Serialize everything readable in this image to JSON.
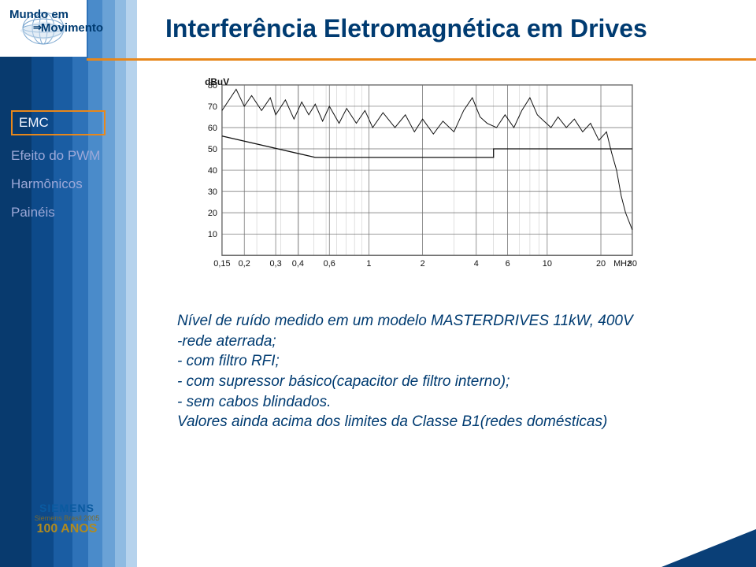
{
  "brand": {
    "line1": "Mundo em",
    "line2": "Movimento"
  },
  "title": "Interferência Eletromagnética em Drives",
  "sidebar": {
    "items": [
      {
        "label": "EMC",
        "active": true
      },
      {
        "label": "Efeito do PWM",
        "active": false
      },
      {
        "label": "Harmônicos",
        "active": false
      },
      {
        "label": "Painéis",
        "active": false
      }
    ]
  },
  "chart": {
    "type": "line",
    "y_axis_label": "dBuV",
    "x_axis_label": "MHz",
    "xlim": [
      0.15,
      30
    ],
    "xscale": "log",
    "ylim": [
      0,
      80
    ],
    "y_ticks": [
      0,
      10,
      20,
      30,
      40,
      50,
      60,
      70,
      80
    ],
    "y_tick_labels": [
      "",
      "10",
      "20",
      "30",
      "40",
      "50",
      "60",
      "70",
      "80"
    ],
    "x_ticks": [
      0.15,
      0.2,
      0.3,
      0.4,
      0.6,
      1,
      2,
      4,
      6,
      10,
      20,
      30
    ],
    "x_tick_labels": [
      "0,15",
      "0,2",
      "0,3",
      "0,4",
      "0,6",
      "1",
      "2",
      "4",
      "6",
      "10",
      "20",
      "30"
    ],
    "background_color": "#ffffff",
    "grid_color": "#6b6b6b",
    "trace_color": "#111111",
    "limit_line_color": "#111111",
    "axis_fontsize": 11,
    "line_width": 1.0,
    "limit_line": [
      {
        "x": 0.15,
        "y": 56
      },
      {
        "x": 0.5,
        "y": 46
      },
      {
        "x": 0.5,
        "y": 46
      },
      {
        "x": 5,
        "y": 46
      },
      {
        "x": 5,
        "y": 50
      },
      {
        "x": 30,
        "y": 50
      }
    ],
    "trace": [
      {
        "x": 0.15,
        "y": 68
      },
      {
        "x": 0.18,
        "y": 78
      },
      {
        "x": 0.2,
        "y": 70
      },
      {
        "x": 0.22,
        "y": 75
      },
      {
        "x": 0.25,
        "y": 68
      },
      {
        "x": 0.28,
        "y": 74
      },
      {
        "x": 0.3,
        "y": 66
      },
      {
        "x": 0.34,
        "y": 73
      },
      {
        "x": 0.38,
        "y": 64
      },
      {
        "x": 0.42,
        "y": 72
      },
      {
        "x": 0.46,
        "y": 66
      },
      {
        "x": 0.5,
        "y": 71
      },
      {
        "x": 0.55,
        "y": 63
      },
      {
        "x": 0.6,
        "y": 70
      },
      {
        "x": 0.68,
        "y": 62
      },
      {
        "x": 0.75,
        "y": 69
      },
      {
        "x": 0.85,
        "y": 62
      },
      {
        "x": 0.95,
        "y": 68
      },
      {
        "x": 1.05,
        "y": 60
      },
      {
        "x": 1.2,
        "y": 67
      },
      {
        "x": 1.4,
        "y": 60
      },
      {
        "x": 1.6,
        "y": 66
      },
      {
        "x": 1.8,
        "y": 58
      },
      {
        "x": 2.0,
        "y": 64
      },
      {
        "x": 2.3,
        "y": 57
      },
      {
        "x": 2.6,
        "y": 63
      },
      {
        "x": 3.0,
        "y": 58
      },
      {
        "x": 3.4,
        "y": 68
      },
      {
        "x": 3.8,
        "y": 74
      },
      {
        "x": 4.2,
        "y": 65
      },
      {
        "x": 4.6,
        "y": 62
      },
      {
        "x": 5.2,
        "y": 60
      },
      {
        "x": 5.8,
        "y": 66
      },
      {
        "x": 6.5,
        "y": 60
      },
      {
        "x": 7.2,
        "y": 68
      },
      {
        "x": 8.0,
        "y": 74
      },
      {
        "x": 8.8,
        "y": 66
      },
      {
        "x": 9.6,
        "y": 63
      },
      {
        "x": 10.5,
        "y": 60
      },
      {
        "x": 11.5,
        "y": 65
      },
      {
        "x": 12.8,
        "y": 60
      },
      {
        "x": 14.2,
        "y": 64
      },
      {
        "x": 15.8,
        "y": 58
      },
      {
        "x": 17.5,
        "y": 62
      },
      {
        "x": 19.5,
        "y": 54
      },
      {
        "x": 21.5,
        "y": 58
      },
      {
        "x": 23.0,
        "y": 48
      },
      {
        "x": 24.5,
        "y": 40
      },
      {
        "x": 26.0,
        "y": 28
      },
      {
        "x": 27.5,
        "y": 20
      },
      {
        "x": 30.0,
        "y": 12
      }
    ]
  },
  "caption": {
    "l1": "Nível de ruído medido em um modelo MASTERDRIVES 11kW, 400V",
    "l2": "-rede aterrada;",
    "l3": "- com filtro RFI;",
    "l4": "- com supressor básico(capacitor de filtro interno);",
    "l5": "- sem cabos blindados.",
    "l6": "Valores ainda acima dos limites da Classe B1(redes domésticas)"
  },
  "footer": {
    "brand": "SIEMENS",
    "sub": "Siemens Brasil 2005",
    "years": "100 ANOS"
  },
  "colors": {
    "title": "#003b71",
    "accent": "#e8871a",
    "stripe1": "#083a6e",
    "stripe2": "#0d4a8a",
    "stripe3": "#1a5da3",
    "stripe4": "#2e72b8",
    "stripe5": "#4a8bca",
    "stripe6": "#6aa2d6",
    "stripe7": "#8fbbe2",
    "stripe8": "#b6d3ed"
  }
}
